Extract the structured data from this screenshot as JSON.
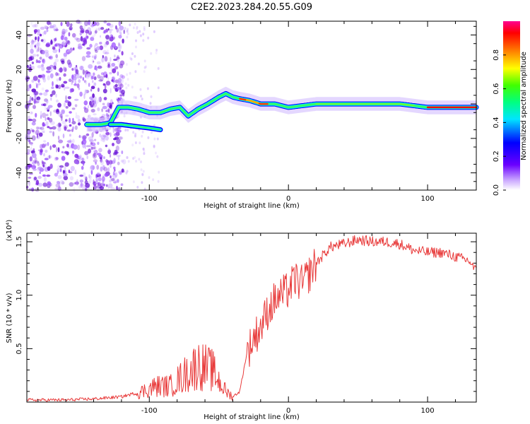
{
  "title": "C2E2.2023.284.20.55.G09",
  "colors": {
    "snr_line": "#e83a3a",
    "scatter": "#7a1fe0"
  },
  "chart_data": [
    {
      "type": "heatmap",
      "xlabel": "Height of straight line (km)",
      "ylabel": "Frequency (Hz)",
      "xlim": [
        -188,
        135
      ],
      "ylim": [
        -50,
        48
      ],
      "x_ticks": [
        -100,
        0,
        100
      ],
      "x_tick_labels": [
        "-100",
        "0",
        "100"
      ],
      "y_ticks": [
        -40,
        -20,
        0,
        20,
        40
      ],
      "y_tick_labels": [
        "-40",
        "-20",
        "0",
        "20",
        "40"
      ],
      "colorbar": {
        "label": "Normalized spectral amplitude",
        "ticks": [
          "0.0",
          "0.2",
          "0.4",
          "0.6",
          "0.8"
        ],
        "tick_values": [
          0.0,
          0.2,
          0.4,
          0.6,
          0.8
        ],
        "range": [
          0,
          1
        ]
      },
      "ridge": [
        {
          "x": -145,
          "y": -12
        },
        {
          "x": -135,
          "y": -12
        },
        {
          "x": -128,
          "y": -11
        },
        {
          "x": -122,
          "y": -2
        },
        {
          "x": -115,
          "y": -2
        },
        {
          "x": -108,
          "y": -3
        },
        {
          "x": -100,
          "y": -5
        },
        {
          "x": -92,
          "y": -5
        },
        {
          "x": -85,
          "y": -3
        },
        {
          "x": -78,
          "y": -2
        },
        {
          "x": -72,
          "y": -7
        },
        {
          "x": -65,
          "y": -3
        },
        {
          "x": -58,
          "y": 0
        },
        {
          "x": -50,
          "y": 4
        },
        {
          "x": -45,
          "y": 6
        },
        {
          "x": -40,
          "y": 4
        },
        {
          "x": -35,
          "y": 3
        },
        {
          "x": -28,
          "y": 2
        },
        {
          "x": -20,
          "y": 0
        },
        {
          "x": -10,
          "y": 0
        },
        {
          "x": 0,
          "y": -2
        },
        {
          "x": 20,
          "y": 0
        },
        {
          "x": 50,
          "y": 0
        },
        {
          "x": 80,
          "y": 0
        },
        {
          "x": 100,
          "y": -2
        },
        {
          "x": 120,
          "y": -2
        },
        {
          "x": 135,
          "y": -2
        }
      ]
    },
    {
      "type": "line",
      "xlabel": "Height of straight line (km)",
      "ylabel": "SNR (10 * v/v)",
      "y_multiplier": "(x10⁴)",
      "xlim": [
        -188,
        135
      ],
      "ylim": [
        0,
        1.58
      ],
      "x_ticks": [
        -100,
        0,
        100
      ],
      "x_tick_labels": [
        "-100",
        "0",
        "100"
      ],
      "y_ticks": [
        0.5,
        1.0,
        1.5
      ],
      "y_tick_labels": [
        "0.5",
        "1.0",
        "1.5"
      ],
      "series": [
        {
          "x": [
            -188,
            -160,
            -140,
            -120,
            -105,
            -95,
            -85,
            -75,
            -65,
            -55,
            -45,
            -40,
            -35,
            -30,
            -25,
            -20,
            -15,
            -10,
            -5,
            0,
            5,
            10,
            15,
            20,
            30,
            40,
            50,
            60,
            70,
            80,
            90,
            100,
            110,
            120,
            130,
            135
          ],
          "values": [
            0.02,
            0.02,
            0.03,
            0.05,
            0.1,
            0.15,
            0.15,
            0.25,
            0.35,
            0.3,
            0.1,
            0.05,
            0.1,
            0.45,
            0.6,
            0.7,
            0.85,
            0.95,
            1.0,
            1.05,
            1.15,
            1.1,
            1.2,
            1.3,
            1.45,
            1.48,
            1.52,
            1.5,
            1.5,
            1.48,
            1.42,
            1.4,
            1.4,
            1.36,
            1.32,
            1.22
          ]
        }
      ]
    }
  ]
}
